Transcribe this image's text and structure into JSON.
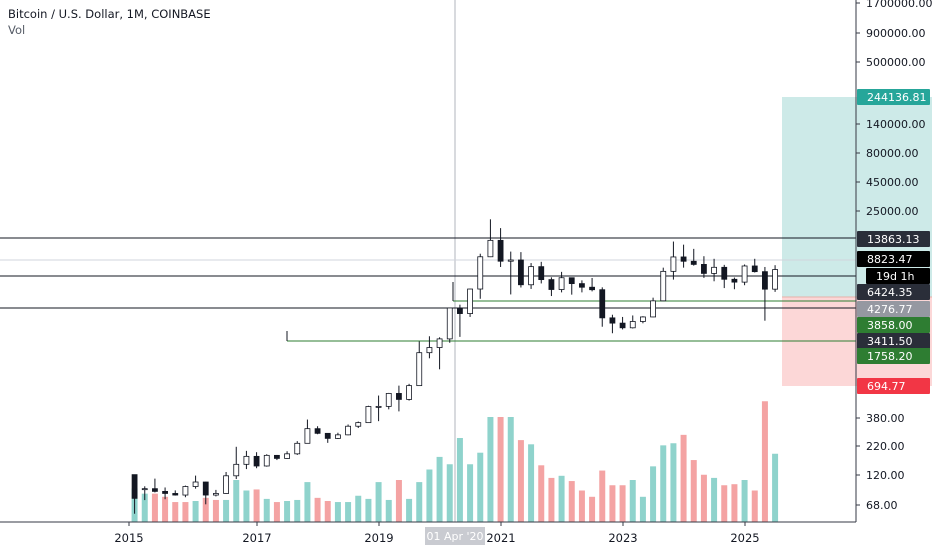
{
  "chart_title": "Bitcoin / U.S. Dollar, 1M, COINBASE",
  "volume_label": "Vol",
  "colors": {
    "up": "#26a69a",
    "down": "#131722",
    "volume_up": "#8fd3cc",
    "volume_down": "#f4a3a3",
    "profit_zone": "#b2dfdb",
    "loss_zone": "#fcd0d0",
    "h_line": "#131722",
    "green_line": "#2e7d32",
    "crosshair": "#b2b5be"
  },
  "chart_data": {
    "type": "candlestick",
    "title": "Bitcoin / U.S. Dollar, 1M, COINBASE",
    "y_scale": "log",
    "y_ticks": [
      "1700000.00",
      "900000.00",
      "500000.00",
      "140000.00",
      "80000.00",
      "45000.00",
      "25000.00",
      "380.00",
      "220.00",
      "120.00",
      "68.00"
    ],
    "x_ticks": [
      "2015",
      "2017",
      "2019",
      "2021",
      "2023",
      "2025"
    ],
    "crosshair_date": "01 Apr '20",
    "price_labels": [
      {
        "text": "244136.81",
        "style": "teal"
      },
      {
        "text": "13863.13",
        "style": "dark"
      },
      {
        "text": "8823.47",
        "style": "black"
      },
      {
        "text": "19d 1h",
        "style": "black"
      },
      {
        "text": "6424.35",
        "style": "dark"
      },
      {
        "text": "4276.77",
        "style": "gray"
      },
      {
        "text": "3858.00",
        "style": "green"
      },
      {
        "text": "3411.50",
        "style": "dark"
      },
      {
        "text": "1758.20",
        "style": "green"
      },
      {
        "text": "694.77",
        "style": "red"
      }
    ],
    "horizontal_levels": [
      13863.13,
      6424.35,
      4276.77
    ],
    "support_lines": [
      {
        "start": "2017-07",
        "price": 1758.2
      },
      {
        "start": "2019-12",
        "price": 3858.0
      }
    ],
    "position": {
      "entry": 4276.77,
      "target": 244136.81,
      "stop": 694.77,
      "start": "2020-04",
      "end": "2024-12"
    },
    "candles": [
      [
        "2015-01",
        320,
        320,
        170,
        218
      ],
      [
        "2015-02",
        255,
        265,
        212,
        255
      ],
      [
        "2015-03",
        255,
        300,
        240,
        244
      ],
      [
        "2015-04",
        244,
        260,
        215,
        236
      ],
      [
        "2015-05",
        236,
        248,
        228,
        230
      ],
      [
        "2015-06",
        230,
        268,
        222,
        264
      ],
      [
        "2015-07",
        264,
        315,
        255,
        284
      ],
      [
        "2015-08",
        284,
        285,
        198,
        230
      ],
      [
        "2015-09",
        230,
        250,
        225,
        236
      ],
      [
        "2015-10",
        236,
        334,
        235,
        314
      ],
      [
        "2015-11",
        314,
        502,
        298,
        378
      ],
      [
        "2015-12",
        378,
        470,
        350,
        430
      ],
      [
        "2016-01",
        430,
        460,
        355,
        368
      ],
      [
        "2016-02",
        368,
        445,
        364,
        437
      ],
      [
        "2016-03",
        437,
        440,
        405,
        416
      ],
      [
        "2016-04",
        416,
        467,
        414,
        448
      ],
      [
        "2016-05",
        448,
        550,
        440,
        531
      ],
      [
        "2016-06",
        531,
        780,
        530,
        673
      ],
      [
        "2016-07",
        673,
        700,
        615,
        624
      ],
      [
        "2016-08",
        624,
        625,
        535,
        575
      ],
      [
        "2016-09",
        575,
        630,
        570,
        609
      ],
      [
        "2016-10",
        609,
        720,
        605,
        700
      ],
      [
        "2016-11",
        700,
        755,
        680,
        742
      ],
      [
        "2016-12",
        742,
        975,
        740,
        963
      ],
      [
        "2017-01",
        963,
        1150,
        760,
        965
      ],
      [
        "2017-02",
        965,
        1200,
        920,
        1190
      ],
      [
        "2017-03",
        1190,
        1350,
        890,
        1080
      ],
      [
        "2017-04",
        1080,
        1390,
        1060,
        1350
      ],
      [
        "2017-05",
        1350,
        2760,
        1345,
        2300
      ],
      [
        "2017-06",
        2300,
        3000,
        2100,
        2500
      ],
      [
        "2017-07",
        2500,
        2950,
        1758,
        2875
      ],
      [
        "2017-08",
        2875,
        4750,
        2700,
        4740
      ],
      [
        "2017-09",
        4740,
        5000,
        2970,
        4330
      ],
      [
        "2017-10",
        4330,
        6470,
        4100,
        6440
      ],
      [
        "2017-11",
        6440,
        11400,
        5500,
        10850
      ],
      [
        "2017-12",
        10850,
        19890,
        10800,
        14150
      ],
      [
        "2018-01",
        14150,
        17250,
        9200,
        10100
      ],
      [
        "2018-02",
        10100,
        11800,
        5900,
        10300
      ],
      [
        "2018-03",
        10300,
        11700,
        6600,
        6900
      ],
      [
        "2018-04",
        6900,
        9800,
        6450,
        9250
      ],
      [
        "2018-05",
        9250,
        10000,
        7050,
        7500
      ],
      [
        "2018-06",
        7500,
        7780,
        5750,
        6390
      ],
      [
        "2018-07",
        6390,
        8500,
        6100,
        7730
      ],
      [
        "2018-08",
        7730,
        7760,
        5880,
        7030
      ],
      [
        "2018-09",
        7030,
        7410,
        6100,
        6630
      ],
      [
        "2018-10",
        6630,
        7700,
        6200,
        6370
      ],
      [
        "2018-11",
        6370,
        6620,
        3500,
        4040
      ],
      [
        "2018-12",
        4040,
        4250,
        3150,
        3710
      ],
      [
        "2019-01",
        3710,
        4100,
        3350,
        3440
      ],
      [
        "2019-02",
        3440,
        4200,
        3400,
        3810
      ],
      [
        "2019-03",
        3810,
        4150,
        3700,
        4100
      ],
      [
        "2019-04",
        4100,
        5600,
        4080,
        5320
      ],
      [
        "2019-05",
        5320,
        9100,
        5300,
        8570
      ],
      [
        "2019-06",
        8570,
        13880,
        7500,
        10820
      ],
      [
        "2019-07",
        10820,
        13200,
        9100,
        10090
      ],
      [
        "2019-08",
        10090,
        12330,
        9400,
        9590
      ],
      [
        "2019-09",
        9590,
        10950,
        7710,
        8290
      ],
      [
        "2019-10",
        8290,
        10500,
        7300,
        9150
      ],
      [
        "2019-11",
        9150,
        9520,
        6540,
        7540
      ],
      [
        "2019-12",
        7540,
        7750,
        6420,
        7200
      ],
      [
        "2020-01",
        7200,
        9580,
        6850,
        9350
      ],
      [
        "2020-02",
        9350,
        10500,
        8410,
        8530
      ],
      [
        "2020-03",
        8530,
        9200,
        3858,
        6425
      ],
      [
        "2020-04",
        6425,
        9470,
        6150,
        8823
      ]
    ],
    "volumes": [
      [
        "2015-01",
        32,
        "up"
      ],
      [
        "2015-02",
        27,
        "up"
      ],
      [
        "2015-03",
        27,
        "down"
      ],
      [
        "2015-04",
        24,
        "down"
      ],
      [
        "2015-05",
        19,
        "down"
      ],
      [
        "2015-06",
        19,
        "down"
      ],
      [
        "2015-07",
        20,
        "up"
      ],
      [
        "2015-08",
        23,
        "down"
      ],
      [
        "2015-09",
        21,
        "down"
      ],
      [
        "2015-10",
        21,
        "up"
      ],
      [
        "2015-11",
        40,
        "up"
      ],
      [
        "2015-12",
        30,
        "up"
      ],
      [
        "2016-01",
        31,
        "down"
      ],
      [
        "2016-02",
        22,
        "up"
      ],
      [
        "2016-03",
        19,
        "down"
      ],
      [
        "2016-04",
        20,
        "up"
      ],
      [
        "2016-05",
        21,
        "up"
      ],
      [
        "2016-06",
        38,
        "up"
      ],
      [
        "2016-07",
        23,
        "down"
      ],
      [
        "2016-08",
        20,
        "down"
      ],
      [
        "2016-09",
        19,
        "up"
      ],
      [
        "2016-10",
        19,
        "up"
      ],
      [
        "2016-11",
        25,
        "up"
      ],
      [
        "2016-12",
        22,
        "up"
      ],
      [
        "2017-01",
        38,
        "up"
      ],
      [
        "2017-02",
        21,
        "up"
      ],
      [
        "2017-03",
        40,
        "down"
      ],
      [
        "2017-04",
        22,
        "up"
      ],
      [
        "2017-05",
        38,
        "up"
      ],
      [
        "2017-06",
        50,
        "up"
      ],
      [
        "2017-07",
        62,
        "up"
      ],
      [
        "2017-08",
        55,
        "up"
      ],
      [
        "2017-09",
        80,
        "up"
      ],
      [
        "2017-10",
        55,
        "up"
      ],
      [
        "2017-11",
        66,
        "up"
      ],
      [
        "2017-12",
        100,
        "up"
      ],
      [
        "2018-01",
        100,
        "down"
      ],
      [
        "2018-02",
        100,
        "up"
      ],
      [
        "2018-03",
        78,
        "down"
      ],
      [
        "2018-04",
        74,
        "up"
      ],
      [
        "2018-05",
        54,
        "down"
      ],
      [
        "2018-06",
        42,
        "down"
      ],
      [
        "2018-07",
        44,
        "up"
      ],
      [
        "2018-08",
        39,
        "down"
      ],
      [
        "2018-09",
        30,
        "down"
      ],
      [
        "2018-10",
        24,
        "down"
      ],
      [
        "2018-11",
        49,
        "down"
      ],
      [
        "2018-12",
        35,
        "down"
      ],
      [
        "2019-01",
        35,
        "down"
      ],
      [
        "2019-02",
        40,
        "up"
      ],
      [
        "2019-03",
        24,
        "up"
      ],
      [
        "2019-04",
        53,
        "up"
      ],
      [
        "2019-05",
        73,
        "up"
      ],
      [
        "2019-06",
        75,
        "up"
      ],
      [
        "2019-07",
        83,
        "down"
      ],
      [
        "2019-08",
        59,
        "down"
      ],
      [
        "2019-09",
        45,
        "down"
      ],
      [
        "2019-10",
        42,
        "up"
      ],
      [
        "2019-11",
        35,
        "down"
      ],
      [
        "2019-12",
        36,
        "down"
      ],
      [
        "2020-01",
        40,
        "up"
      ],
      [
        "2020-02",
        30,
        "down"
      ],
      [
        "2020-03",
        115,
        "down"
      ],
      [
        "2020-04",
        65,
        "up"
      ]
    ]
  }
}
